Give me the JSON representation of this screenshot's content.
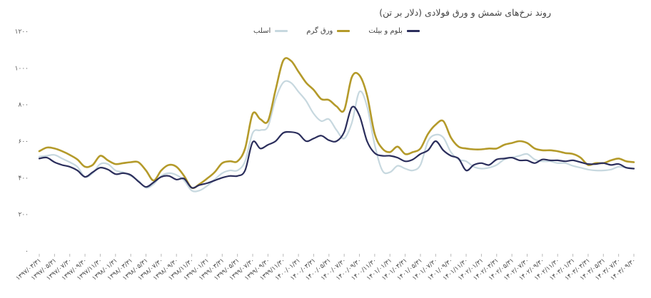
{
  "chart_data": {
    "type": "line",
    "title": "روند نرخ‌های شمش و ورق فولادی (دلار بر تن)",
    "ylim": [
      0,
      1200
    ],
    "y_ticks": [
      "0",
      "200",
      "400",
      "600",
      "800",
      "1000",
      "1200"
    ],
    "grid": false,
    "legend": "top-center",
    "categories": [
      "1397/03/31",
      "1397/05/31",
      "1397/07/30",
      "1397/09/30",
      "1397/11/30",
      "1398/01/31",
      "1398/03/31",
      "1398/05/31",
      "1398/07/30",
      "1398/09/30",
      "1398/11/30",
      "1399/01/31",
      "1399/03/31",
      "1399/05/31",
      "1399/07/30",
      "1399/09/30",
      "1399/11/30",
      "1400/01/31",
      "1400/03/31",
      "1400/05/31",
      "1400/07/30",
      "1400/09/30",
      "1400/11/30",
      "1401/01/31",
      "1401/03/31",
      "1401/05/31",
      "1401/07/30",
      "1401/09/30",
      "1401/11/30",
      "1402/01/31",
      "1402/03/31",
      "1402/05/31",
      "1402/07/30",
      "1402/09/30",
      "1402/11/30",
      "1403/01/31",
      "1403/03/31",
      "1403/05/31",
      "1403/07/30",
      "1403/09/30"
    ],
    "x": [
      0,
      0.5,
      1,
      1.5,
      2,
      2.5,
      3,
      3.5,
      4,
      4.5,
      5,
      5.5,
      6,
      6.5,
      7,
      7.5,
      8,
      8.5,
      9,
      9.5,
      10,
      10.5,
      11,
      11.5,
      12,
      12.5,
      13,
      13.5,
      14,
      14.5,
      15,
      15.5,
      16,
      16.5,
      17,
      17.5,
      18,
      18.5,
      19,
      19.5,
      20,
      20.5,
      21,
      21.5,
      22,
      22.5,
      23,
      23.5,
      24,
      24.5,
      25,
      25.5,
      26,
      26.5,
      27,
      27.5,
      28,
      28.5,
      29,
      29.5,
      30,
      30.5,
      31,
      31.5,
      32,
      32.5,
      33,
      33.5,
      34,
      34.5,
      35,
      35.5,
      36,
      36.5,
      37,
      37.5,
      38,
      38.5,
      39
    ],
    "series": [
      {
        "name": "بلوم و بیلت",
        "color": "#2b2e5c",
        "values": [
          505,
          510,
          485,
          470,
          460,
          440,
          405,
          430,
          455,
          445,
          420,
          425,
          415,
          380,
          350,
          375,
          405,
          410,
          390,
          395,
          345,
          360,
          370,
          385,
          400,
          410,
          410,
          440,
          595,
          560,
          580,
          600,
          645,
          650,
          640,
          600,
          615,
          630,
          605,
          600,
          650,
          785,
          740,
          600,
          535,
          520,
          520,
          510,
          490,
          500,
          530,
          550,
          600,
          550,
          520,
          505,
          440,
          470,
          480,
          470,
          500,
          505,
          510,
          495,
          495,
          480,
          500,
          495,
          495,
          490,
          495,
          485,
          475,
          475,
          480,
          470,
          475,
          455,
          450
        ]
      },
      {
        "name": "ورق گرم",
        "color": "#b49a2a",
        "values": [
          545,
          565,
          560,
          545,
          525,
          500,
          460,
          470,
          520,
          495,
          475,
          480,
          485,
          485,
          440,
          385,
          440,
          470,
          460,
          410,
          345,
          365,
          395,
          430,
          480,
          490,
          490,
          560,
          750,
          720,
          710,
          880,
          1040,
          1040,
          980,
          920,
          880,
          830,
          825,
          790,
          770,
          950,
          960,
          850,
          640,
          560,
          540,
          570,
          530,
          540,
          560,
          640,
          690,
          710,
          620,
          570,
          560,
          555,
          555,
          560,
          560,
          580,
          590,
          600,
          590,
          560,
          550,
          550,
          545,
          535,
          530,
          510,
          470,
          480,
          480,
          495,
          505,
          490,
          485
        ]
      },
      {
        "name": "اسلب",
        "color": "#c7d8df",
        "values": [
          515,
          520,
          525,
          505,
          485,
          460,
          405,
          425,
          475,
          475,
          440,
          430,
          410,
          385,
          345,
          365,
          410,
          425,
          415,
          385,
          330,
          330,
          355,
          390,
          425,
          440,
          440,
          490,
          645,
          660,
          680,
          830,
          920,
          920,
          870,
          820,
          750,
          710,
          720,
          660,
          615,
          700,
          870,
          790,
          580,
          440,
          430,
          465,
          450,
          440,
          470,
          600,
          635,
          620,
          540,
          500,
          490,
          460,
          450,
          455,
          470,
          500,
          510,
          520,
          530,
          500,
          490,
          490,
          480,
          480,
          465,
          455,
          445,
          440,
          440,
          445,
          460,
          455,
          450
        ]
      }
    ]
  }
}
